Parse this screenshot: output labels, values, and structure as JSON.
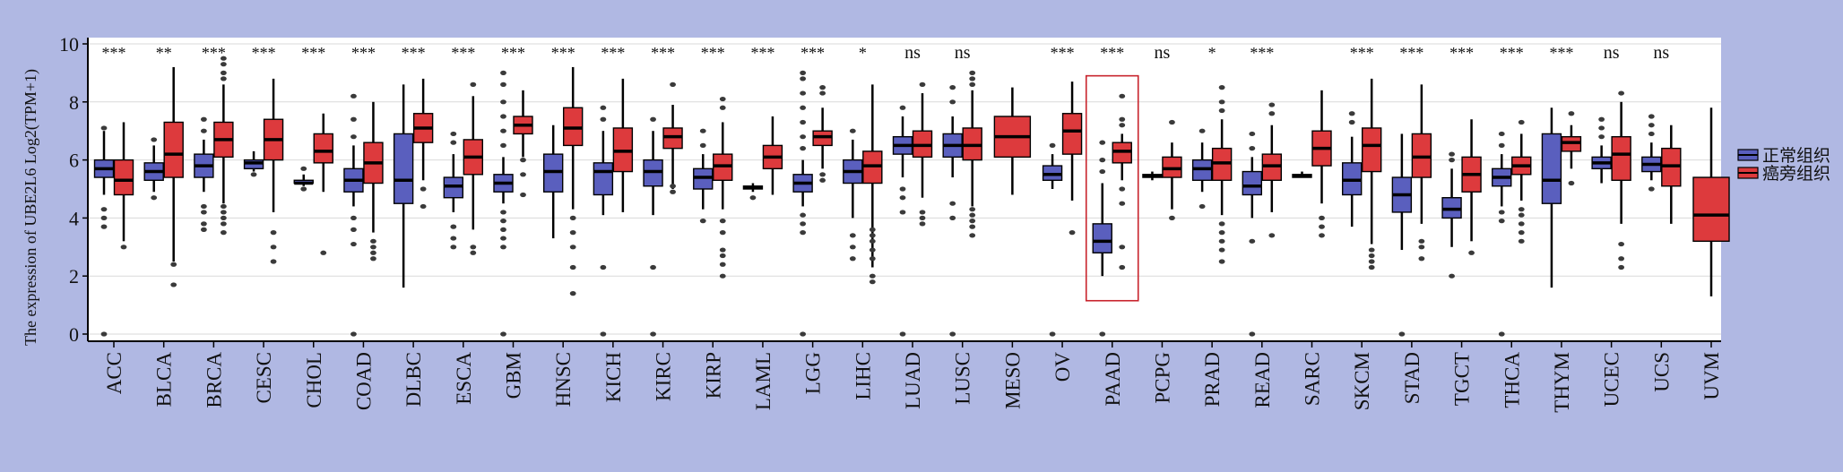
{
  "chart_data": {
    "type": "box",
    "ylabel": "The expression of UBE2L6 Log2(TPM+1)",
    "ylim": [
      0,
      10
    ],
    "yticks": [
      0,
      2,
      4,
      6,
      8,
      10
    ],
    "grid": true,
    "legend": {
      "position": "right",
      "entries": [
        {
          "name": "正常组织",
          "color": "#5a5fbe"
        },
        {
          "name": "癌旁组织",
          "color": "#dd3a3d"
        }
      ]
    },
    "highlight": "PAAD",
    "categories": [
      "ACC",
      "BLCA",
      "BRCA",
      "CESC",
      "CHOL",
      "COAD",
      "DLBC",
      "ESCA",
      "GBM",
      "HNSC",
      "KICH",
      "KIRC",
      "KIRP",
      "LAML",
      "LGG",
      "LIHC",
      "LUAD",
      "LUSC",
      "MESO",
      "OV",
      "PAAD",
      "PCPG",
      "PRAD",
      "READ",
      "SARC",
      "SKCM",
      "STAD",
      "TGCT",
      "THCA",
      "THYM",
      "UCEC",
      "UCS",
      "UVM"
    ],
    "significance": [
      "***",
      "**",
      "***",
      "***",
      "***",
      "***",
      "***",
      "***",
      "***",
      "***",
      "***",
      "***",
      "***",
      "***",
      "***",
      "*",
      "ns",
      "ns",
      "",
      "***",
      "***",
      "ns",
      "*",
      "***",
      "",
      "***",
      "***",
      "***",
      "***",
      "***",
      "ns",
      "ns",
      ""
    ],
    "series": [
      {
        "name": "正常组织",
        "color": "#5a5fbe",
        "boxes": [
          {
            "whislo": 4.8,
            "q1": 5.4,
            "med": 5.7,
            "q3": 6.0,
            "whishi": 7.0,
            "fliers": [
              0,
              3.7,
              4.0,
              4.3,
              7.1
            ]
          },
          {
            "whislo": 4.9,
            "q1": 5.3,
            "med": 5.6,
            "q3": 5.9,
            "whishi": 6.5,
            "fliers": [
              4.7,
              6.7
            ]
          },
          {
            "whislo": 4.9,
            "q1": 5.4,
            "med": 5.8,
            "q3": 6.2,
            "whishi": 6.7,
            "fliers": [
              3.6,
              3.8,
              4.2,
              4.4,
              7.0,
              7.4
            ]
          },
          {
            "whislo": 5.6,
            "q1": 5.7,
            "med": 5.9,
            "q3": 6.0,
            "whishi": 6.3,
            "fliers": [
              5.5
            ]
          },
          {
            "whislo": 5.1,
            "q1": 5.2,
            "med": 5.2,
            "q3": 5.3,
            "whishi": 5.5,
            "fliers": [
              5.0,
              5.7
            ]
          },
          {
            "whislo": 4.4,
            "q1": 4.9,
            "med": 5.3,
            "q3": 5.7,
            "whishi": 6.5,
            "fliers": [
              0,
              3.1,
              3.6,
              4.0,
              6.8,
              7.4,
              8.2
            ]
          },
          {
            "whislo": 1.6,
            "q1": 4.5,
            "med": 5.3,
            "q3": 6.9,
            "whishi": 8.6,
            "fliers": []
          },
          {
            "whislo": 4.2,
            "q1": 4.7,
            "med": 5.1,
            "q3": 5.4,
            "whishi": 6.2,
            "fliers": [
              3.0,
              3.3,
              3.7,
              6.6,
              6.9
            ]
          },
          {
            "whislo": 4.5,
            "q1": 4.9,
            "med": 5.2,
            "q3": 5.5,
            "whishi": 6.1,
            "fliers": [
              0,
              3.0,
              3.3,
              3.6,
              3.9,
              4.2,
              6.5,
              7.0,
              7.5,
              8.0,
              8.6,
              9.0
            ]
          },
          {
            "whislo": 3.3,
            "q1": 4.9,
            "med": 5.6,
            "q3": 6.2,
            "whishi": 7.2,
            "fliers": []
          },
          {
            "whislo": 4.1,
            "q1": 4.8,
            "med": 5.6,
            "q3": 5.9,
            "whishi": 7.0,
            "fliers": [
              0,
              2.3,
              7.4,
              7.8
            ]
          },
          {
            "whislo": 4.1,
            "q1": 5.1,
            "med": 5.6,
            "q3": 6.0,
            "whishi": 7.0,
            "fliers": [
              0,
              2.3,
              7.4
            ]
          },
          {
            "whislo": 4.3,
            "q1": 5.0,
            "med": 5.4,
            "q3": 5.7,
            "whishi": 6.2,
            "fliers": [
              3.9,
              6.5,
              7.0
            ]
          },
          {
            "whislo": 4.9,
            "q1": 5.0,
            "med": 5.05,
            "q3": 5.1,
            "whishi": 5.2,
            "fliers": [
              4.7
            ]
          },
          {
            "whislo": 4.4,
            "q1": 4.9,
            "med": 5.2,
            "q3": 5.5,
            "whishi": 6.0,
            "fliers": [
              0,
              3.5,
              3.8,
              4.1,
              6.4,
              6.8,
              7.3,
              7.8,
              8.3,
              8.8,
              9.0
            ]
          },
          {
            "whislo": 4.0,
            "q1": 5.2,
            "med": 5.6,
            "q3": 6.0,
            "whishi": 6.7,
            "fliers": [
              2.6,
              3.0,
              3.4,
              7.0
            ]
          },
          {
            "whislo": 5.4,
            "q1": 6.2,
            "med": 6.5,
            "q3": 6.8,
            "whishi": 7.5,
            "fliers": [
              0,
              4.2,
              4.7,
              5.0,
              7.8
            ]
          },
          {
            "whislo": 5.4,
            "q1": 6.1,
            "med": 6.5,
            "q3": 6.9,
            "whishi": 7.5,
            "fliers": [
              0,
              4.0,
              4.5,
              8.0,
              8.5
            ]
          },
          null,
          {
            "whislo": 5.0,
            "q1": 5.3,
            "med": 5.5,
            "q3": 5.8,
            "whishi": 6.2,
            "fliers": [
              0,
              6.5
            ]
          },
          {
            "whislo": 2.0,
            "q1": 2.8,
            "med": 3.2,
            "q3": 3.8,
            "whishi": 5.2,
            "fliers": [
              0,
              5.6,
              6.0,
              6.6
            ]
          },
          {
            "whislo": 5.3,
            "q1": 5.4,
            "med": 5.45,
            "q3": 5.5,
            "whishi": 5.6,
            "fliers": []
          },
          {
            "whislo": 4.9,
            "q1": 5.3,
            "med": 5.7,
            "q3": 6.0,
            "whishi": 6.6,
            "fliers": [
              4.4,
              7.0
            ]
          },
          {
            "whislo": 4.0,
            "q1": 4.8,
            "med": 5.1,
            "q3": 5.6,
            "whishi": 6.1,
            "fliers": [
              0,
              3.2,
              6.4,
              6.9
            ]
          },
          {
            "whislo": 5.4,
            "q1": 5.4,
            "med": 5.45,
            "q3": 5.5,
            "whishi": 5.6,
            "fliers": []
          },
          {
            "whislo": 3.7,
            "q1": 4.8,
            "med": 5.3,
            "q3": 5.9,
            "whishi": 6.8,
            "fliers": [
              7.3,
              7.6
            ]
          },
          {
            "whislo": 2.9,
            "q1": 4.2,
            "med": 4.8,
            "q3": 5.4,
            "whishi": 6.9,
            "fliers": [
              0
            ]
          },
          {
            "whislo": 3.0,
            "q1": 4.0,
            "med": 4.3,
            "q3": 4.7,
            "whishi": 5.7,
            "fliers": [
              2.0,
              6.0,
              6.2
            ]
          },
          {
            "whislo": 4.4,
            "q1": 5.1,
            "med": 5.4,
            "q3": 5.7,
            "whishi": 6.2,
            "fliers": [
              0,
              3.9,
              4.2,
              6.5,
              6.9
            ]
          },
          {
            "whislo": 1.6,
            "q1": 4.5,
            "med": 5.3,
            "q3": 6.9,
            "whishi": 7.8,
            "fliers": []
          },
          {
            "whislo": 5.2,
            "q1": 5.7,
            "med": 5.9,
            "q3": 6.1,
            "whishi": 6.5,
            "fliers": [
              6.8,
              7.1,
              7.4
            ]
          },
          {
            "whislo": 5.3,
            "q1": 5.6,
            "med": 5.85,
            "q3": 6.1,
            "whishi": 6.6,
            "fliers": [
              5.0,
              6.9,
              7.2,
              7.5
            ]
          },
          null
        ]
      },
      {
        "name": "癌旁组织",
        "color": "#dd3a3d",
        "boxes": [
          {
            "whislo": 3.2,
            "q1": 4.8,
            "med": 5.3,
            "q3": 6.0,
            "whishi": 7.3,
            "fliers": [
              3.0
            ]
          },
          {
            "whislo": 2.5,
            "q1": 5.4,
            "med": 6.2,
            "q3": 7.3,
            "whishi": 9.2,
            "fliers": [
              1.7,
              2.4
            ]
          },
          {
            "whislo": 4.5,
            "q1": 6.1,
            "med": 6.7,
            "q3": 7.3,
            "whishi": 8.6,
            "fliers": [
              3.5,
              3.8,
              4.0,
              4.2,
              4.4,
              8.8,
              9.0,
              9.3,
              9.5
            ]
          },
          {
            "whislo": 4.2,
            "q1": 6.0,
            "med": 6.7,
            "q3": 7.4,
            "whishi": 8.8,
            "fliers": [
              2.5,
              3.0,
              3.5
            ]
          },
          {
            "whislo": 4.9,
            "q1": 5.9,
            "med": 6.3,
            "q3": 6.9,
            "whishi": 7.6,
            "fliers": [
              2.8
            ]
          },
          {
            "whislo": 3.5,
            "q1": 5.2,
            "med": 5.9,
            "q3": 6.6,
            "whishi": 8.0,
            "fliers": [
              2.6,
              2.8,
              3.0,
              3.2
            ]
          },
          {
            "whislo": 5.3,
            "q1": 6.6,
            "med": 7.1,
            "q3": 7.6,
            "whishi": 8.8,
            "fliers": [
              4.4,
              5.0
            ]
          },
          {
            "whislo": 3.6,
            "q1": 5.5,
            "med": 6.1,
            "q3": 6.7,
            "whishi": 8.2,
            "fliers": [
              2.8,
              3.0,
              8.6
            ]
          },
          {
            "whislo": 6.1,
            "q1": 6.9,
            "med": 7.2,
            "q3": 7.5,
            "whishi": 8.4,
            "fliers": [
              4.8,
              5.5,
              6.0
            ]
          },
          {
            "whislo": 4.3,
            "q1": 6.5,
            "med": 7.1,
            "q3": 7.8,
            "whishi": 9.2,
            "fliers": [
              1.4,
              2.3,
              3.0,
              3.5,
              4.0
            ]
          },
          {
            "whislo": 4.2,
            "q1": 5.6,
            "med": 6.3,
            "q3": 7.1,
            "whishi": 8.8,
            "fliers": []
          },
          {
            "whislo": 5.0,
            "q1": 6.4,
            "med": 6.8,
            "q3": 7.1,
            "whishi": 7.9,
            "fliers": [
              4.9,
              5.1,
              8.6
            ]
          },
          {
            "whislo": 4.3,
            "q1": 5.3,
            "med": 5.8,
            "q3": 6.2,
            "whishi": 7.3,
            "fliers": [
              2.0,
              2.4,
              2.7,
              2.9,
              3.5,
              3.9,
              7.8,
              8.1
            ]
          },
          {
            "whislo": 4.8,
            "q1": 5.7,
            "med": 6.1,
            "q3": 6.5,
            "whishi": 7.5,
            "fliers": []
          },
          {
            "whislo": 5.7,
            "q1": 6.5,
            "med": 6.8,
            "q3": 7.0,
            "whishi": 7.8,
            "fliers": [
              5.3,
              5.5,
              8.3,
              8.5
            ]
          },
          {
            "whislo": 2.3,
            "q1": 5.2,
            "med": 5.8,
            "q3": 6.3,
            "whishi": 8.6,
            "fliers": [
              1.8,
              2.0,
              2.6,
              2.9,
              3.2,
              3.4,
              3.6
            ]
          },
          {
            "whislo": 4.7,
            "q1": 6.1,
            "med": 6.5,
            "q3": 7.0,
            "whishi": 8.3,
            "fliers": [
              3.8,
              4.0,
              4.2,
              8.6
            ]
          },
          {
            "whislo": 4.4,
            "q1": 6.0,
            "med": 6.5,
            "q3": 7.1,
            "whishi": 8.4,
            "fliers": [
              3.4,
              3.7,
              3.9,
              4.1,
              4.3,
              8.6,
              8.8,
              9.0
            ]
          },
          {
            "whislo": 4.8,
            "q1": 6.1,
            "med": 6.8,
            "q3": 7.5,
            "whishi": 8.5,
            "fliers": []
          },
          {
            "whislo": 4.6,
            "q1": 6.2,
            "med": 7.0,
            "q3": 7.6,
            "whishi": 8.7,
            "fliers": [
              3.5
            ]
          },
          {
            "whislo": 5.3,
            "q1": 5.9,
            "med": 6.3,
            "q3": 6.6,
            "whishi": 6.9,
            "fliers": [
              2.3,
              3.0,
              4.5,
              5.0,
              7.2,
              7.4,
              8.2
            ]
          },
          {
            "whislo": 4.3,
            "q1": 5.4,
            "med": 5.7,
            "q3": 6.1,
            "whishi": 6.6,
            "fliers": [
              4.0,
              7.3
            ]
          },
          {
            "whislo": 4.1,
            "q1": 5.3,
            "med": 5.9,
            "q3": 6.4,
            "whishi": 7.4,
            "fliers": [
              2.5,
              2.9,
              3.2,
              3.5,
              3.8,
              7.7,
              8.0,
              8.5
            ]
          },
          {
            "whislo": 4.2,
            "q1": 5.3,
            "med": 5.8,
            "q3": 6.2,
            "whishi": 7.2,
            "fliers": [
              3.4,
              7.6,
              7.9
            ]
          },
          {
            "whislo": 4.5,
            "q1": 5.8,
            "med": 6.4,
            "q3": 7.0,
            "whishi": 8.4,
            "fliers": [
              3.4,
              3.7,
              4.0
            ]
          },
          {
            "whislo": 3.1,
            "q1": 5.6,
            "med": 6.5,
            "q3": 7.1,
            "whishi": 8.8,
            "fliers": [
              2.3,
              2.5,
              2.7,
              2.9
            ]
          },
          {
            "whislo": 3.8,
            "q1": 5.4,
            "med": 6.1,
            "q3": 6.9,
            "whishi": 8.6,
            "fliers": [
              2.6,
              3.0,
              3.2
            ]
          },
          {
            "whislo": 3.2,
            "q1": 4.9,
            "med": 5.5,
            "q3": 6.1,
            "whishi": 7.4,
            "fliers": [
              2.8
            ]
          },
          {
            "whislo": 4.6,
            "q1": 5.5,
            "med": 5.8,
            "q3": 6.1,
            "whishi": 6.9,
            "fliers": [
              3.2,
              3.5,
              3.8,
              4.1,
              4.3,
              7.3
            ]
          },
          {
            "whislo": 5.7,
            "q1": 6.3,
            "med": 6.6,
            "q3": 6.8,
            "whishi": 7.2,
            "fliers": [
              5.2,
              7.6
            ]
          },
          {
            "whislo": 3.8,
            "q1": 5.3,
            "med": 6.2,
            "q3": 6.8,
            "whishi": 8.0,
            "fliers": [
              2.3,
              2.6,
              3.1,
              8.3
            ]
          },
          {
            "whislo": 3.8,
            "q1": 5.1,
            "med": 5.8,
            "q3": 6.4,
            "whishi": 7.2,
            "fliers": []
          },
          {
            "whislo": 1.3,
            "q1": 3.2,
            "med": 4.1,
            "q3": 5.4,
            "whishi": 7.8,
            "fliers": []
          }
        ]
      }
    ]
  }
}
